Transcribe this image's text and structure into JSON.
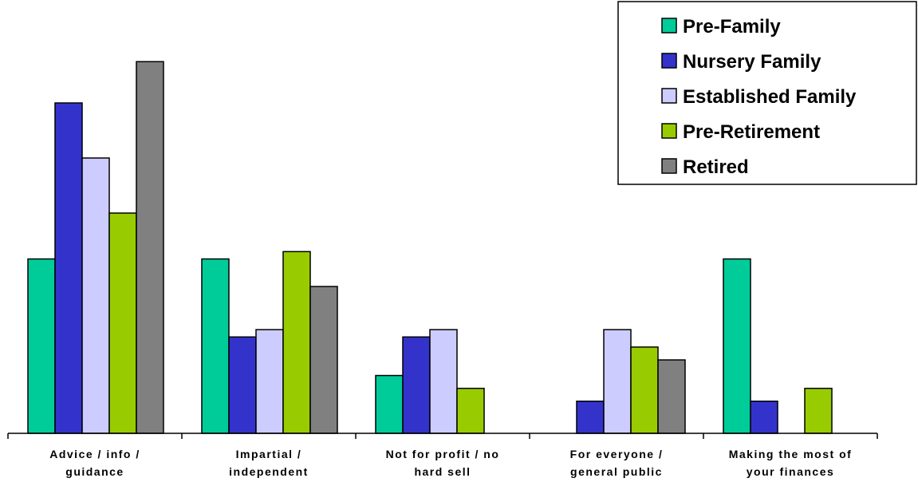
{
  "chart_data": {
    "type": "bar",
    "title": "",
    "xlabel": "",
    "ylabel": "",
    "ylim": [
      0,
      42
    ],
    "grid": false,
    "legend_placement": "top-right",
    "categories": [
      [
        "Advice / info /",
        "guidance"
      ],
      [
        "Impartial /",
        "independent"
      ],
      [
        "Not for profit / no",
        "hard sell"
      ],
      [
        "For everyone /",
        "general public"
      ],
      [
        "Making the most of",
        "your finances"
      ]
    ],
    "series": [
      {
        "name": "Pre-Family",
        "color": "#00cc99",
        "values": [
          19,
          19,
          6.3,
          0,
          19
        ]
      },
      {
        "name": "Nursery Family",
        "color": "#3333cc",
        "values": [
          36,
          10.5,
          10.5,
          3.5,
          3.5
        ]
      },
      {
        "name": "Established Family",
        "color": "#ccccff",
        "values": [
          30,
          11.3,
          11.3,
          11.3,
          0
        ]
      },
      {
        "name": "Pre-Retirement",
        "color": "#99cc00",
        "values": [
          24,
          19.8,
          4.9,
          9.4,
          4.9
        ]
      },
      {
        "name": "Retired",
        "color": "#808080",
        "values": [
          40.5,
          16,
          0,
          8,
          0
        ]
      }
    ]
  }
}
